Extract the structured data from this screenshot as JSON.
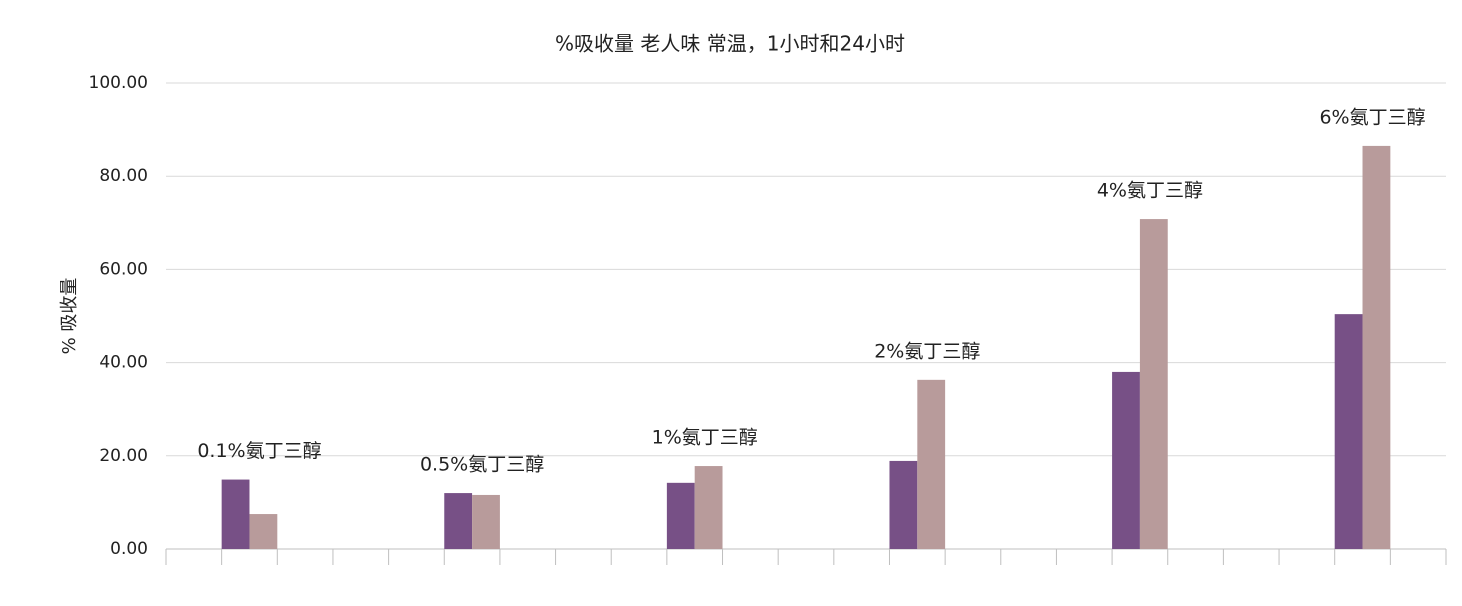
{
  "chart_data": {
    "type": "bar",
    "title": "%吸收量 老人味 常温，1小时和24小时",
    "y_label": "% 吸收量",
    "categories": [
      null,
      "0.1%氨丁三醇",
      null,
      null,
      null,
      "0.5%氨丁三醇",
      null,
      null,
      null,
      "1%氨丁三醇",
      null,
      null,
      null,
      "2%氨丁三醇",
      null,
      null,
      null,
      "4%氨丁三醇",
      null,
      null,
      null,
      "6%氨丁三醇",
      null
    ],
    "series": [
      {
        "color": "#775086",
        "values": [
          null,
          14.9,
          null,
          null,
          null,
          12.0,
          null,
          null,
          null,
          14.2,
          null,
          null,
          null,
          18.9,
          null,
          null,
          null,
          38.0,
          null,
          null,
          null,
          50.4,
          null
        ]
      },
      {
        "color": "#b89b9b",
        "values": [
          null,
          7.5,
          null,
          null,
          null,
          11.6,
          null,
          null,
          null,
          17.8,
          null,
          null,
          null,
          36.3,
          null,
          null,
          null,
          70.8,
          null,
          null,
          null,
          86.5,
          null
        ]
      }
    ],
    "ylim": [
      0,
      100
    ],
    "yticks": [
      {
        "value": 0,
        "label": "0.00"
      },
      {
        "value": 20,
        "label": "20.00"
      },
      {
        "value": 40,
        "label": "40.00"
      },
      {
        "value": 60,
        "label": "60.00"
      },
      {
        "value": 80,
        "label": "80.00"
      },
      {
        "value": 100,
        "label": "100.00"
      }
    ],
    "grid": true
  }
}
